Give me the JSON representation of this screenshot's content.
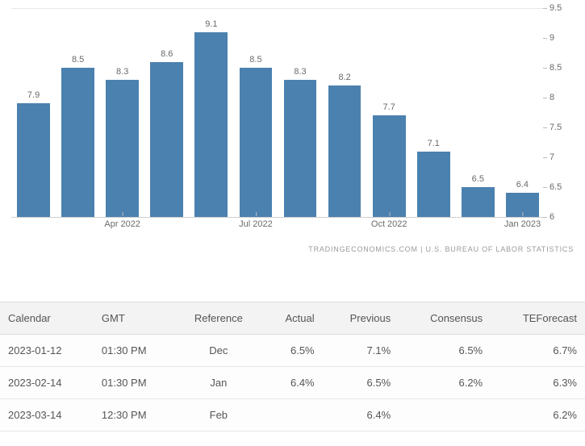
{
  "chart": {
    "type": "bar",
    "bar_color": "#4b81af",
    "label_color": "#6a6a6a",
    "label_fontsize": 11,
    "background_color": "#ffffff",
    "grid_color": "#e8e8e8",
    "axis_color": "#cfcfcf",
    "ylim": [
      6,
      9.5
    ],
    "ytick_step": 0.5,
    "yticks": [
      "6",
      "6.5",
      "7",
      "7.5",
      "8",
      "8.5",
      "9",
      "9.5"
    ],
    "bar_width": 0.74,
    "bars": [
      {
        "label": "7.9",
        "value": 7.9
      },
      {
        "label": "8.5",
        "value": 8.5
      },
      {
        "label": "8.3",
        "value": 8.3
      },
      {
        "label": "8.6",
        "value": 8.6
      },
      {
        "label": "9.1",
        "value": 9.1
      },
      {
        "label": "8.5",
        "value": 8.5
      },
      {
        "label": "8.3",
        "value": 8.3
      },
      {
        "label": "8.2",
        "value": 8.2
      },
      {
        "label": "7.7",
        "value": 7.7
      },
      {
        "label": "7.1",
        "value": 7.1
      },
      {
        "label": "6.5",
        "value": 6.5
      },
      {
        "label": "6.4",
        "value": 6.4
      }
    ],
    "xticks": [
      {
        "label": "Apr 2022",
        "index": 2
      },
      {
        "label": "Jul 2022",
        "index": 5
      },
      {
        "label": "Oct 2022",
        "index": 8
      },
      {
        "label": "Jan 2023",
        "index": 11
      }
    ],
    "source_text": "tradingeconomics.com  |  U.S. Bureau of Labor Statistics"
  },
  "table": {
    "columns": [
      {
        "key": "calendar",
        "label": "Calendar",
        "align": "left"
      },
      {
        "key": "gmt",
        "label": "GMT",
        "align": "left"
      },
      {
        "key": "reference",
        "label": "Reference",
        "align": "center"
      },
      {
        "key": "actual",
        "label": "Actual",
        "align": "right"
      },
      {
        "key": "previous",
        "label": "Previous",
        "align": "right"
      },
      {
        "key": "consensus",
        "label": "Consensus",
        "align": "right"
      },
      {
        "key": "teforecast",
        "label": "TEForecast",
        "align": "right"
      }
    ],
    "rows": [
      {
        "calendar": "2023-01-12",
        "gmt": "01:30 PM",
        "reference": "Dec",
        "actual": "6.5%",
        "previous": "7.1%",
        "consensus": "6.5%",
        "teforecast": "6.7%"
      },
      {
        "calendar": "2023-02-14",
        "gmt": "01:30 PM",
        "reference": "Jan",
        "actual": "6.4%",
        "previous": "6.5%",
        "consensus": "6.2%",
        "teforecast": "6.3%"
      },
      {
        "calendar": "2023-03-14",
        "gmt": "12:30 PM",
        "reference": "Feb",
        "actual": "",
        "previous": "6.4%",
        "consensus": "",
        "teforecast": "6.2%"
      }
    ]
  }
}
